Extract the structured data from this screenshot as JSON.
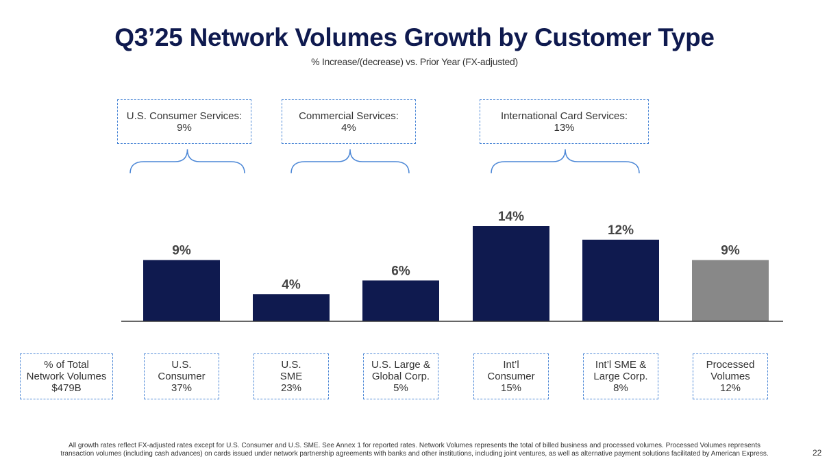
{
  "chart_data": {
    "type": "bar",
    "title": "Q3’25 Network Volumes Growth by Customer Type",
    "subtitle": "% Increase/(decrease) vs. Prior Year (FX-adjusted)",
    "categories": [
      "U.S.\nConsumer",
      "U.S.\nSME",
      "U.S. Large &\nGlobal Corp.",
      "Int’l\nConsumer",
      "Int’l SME &\nLarge Corp.",
      "Processed\nVolumes"
    ],
    "values": [
      9,
      4,
      6,
      14,
      12,
      9
    ],
    "value_labels": [
      "9%",
      "4%",
      "6%",
      "14%",
      "12%",
      "9%"
    ],
    "colors": [
      "#0f1a4f",
      "#0f1a4f",
      "#0f1a4f",
      "#0f1a4f",
      "#0f1a4f",
      "#888888"
    ],
    "ylim": [
      0,
      14
    ],
    "share_header": "% of Total\nNetwork Volumes\n$479B",
    "shares": [
      "37%",
      "23%",
      "5%",
      "15%",
      "8%",
      "12%"
    ],
    "groups": [
      {
        "name": "U.S. Consumer Services:",
        "growth": "9%"
      },
      {
        "name": "Commercial Services:",
        "growth": "4%"
      },
      {
        "name": "International Card Services:",
        "growth": "13%"
      }
    ],
    "footnote": [
      "All growth rates reflect FX-adjusted rates except for U.S. Consumer and U.S. SME. See Annex 1 for reported rates. Network Volumes represents the total of billed business and processed volumes. Processed Volumes represents",
      "transaction volumes (including cash advances) on cards issued under network partnership agreements with banks and other institutions, including joint ventures, as well as alternative payment solutions facilitated by American Express."
    ],
    "page_number": "22"
  }
}
